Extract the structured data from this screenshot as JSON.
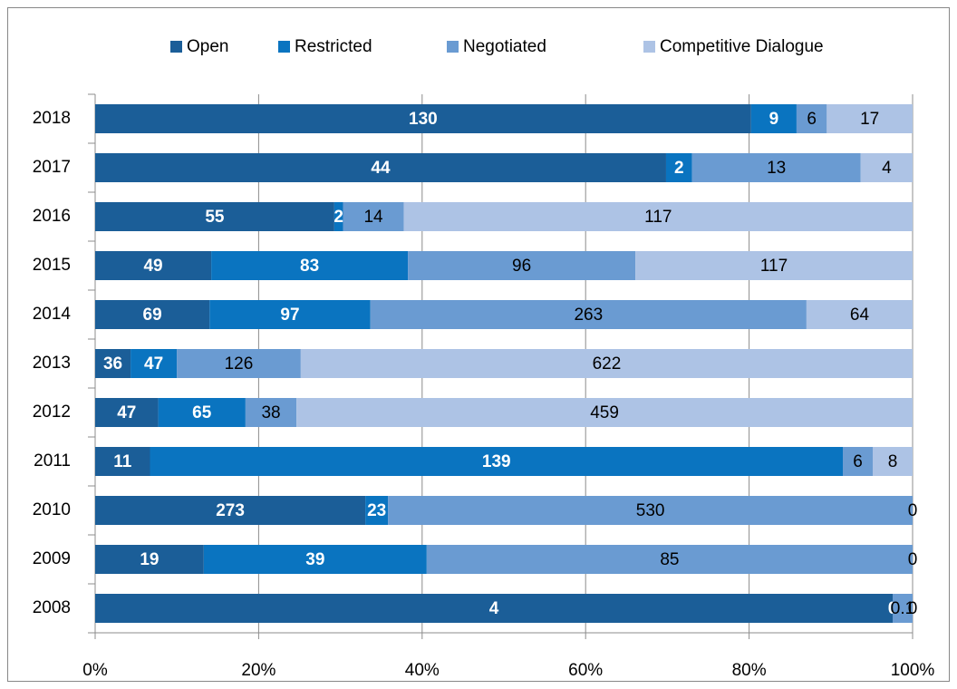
{
  "chart_data": {
    "type": "stacked_percent_barh",
    "categories": [
      "2018",
      "2017",
      "2016",
      "2015",
      "2014",
      "2013",
      "2012",
      "2011",
      "2010",
      "2009",
      "2008"
    ],
    "series": [
      {
        "name": "Open",
        "color": "#1b5e98",
        "values": [
          130,
          44,
          55,
          49,
          69,
          36,
          47,
          11,
          273,
          19,
          4
        ]
      },
      {
        "name": "Restricted",
        "color": "#0a74c0",
        "values": [
          9,
          2,
          2,
          83,
          97,
          47,
          65,
          139,
          23,
          39,
          0
        ]
      },
      {
        "name": "Negotiated",
        "color": "#6a9bd2",
        "values": [
          6,
          13,
          14,
          96,
          263,
          126,
          38,
          6,
          530,
          85,
          0.1
        ]
      },
      {
        "name": "Competitive Dialogue",
        "color": "#adc3e5",
        "values": [
          17,
          4,
          117,
          117,
          64,
          622,
          459,
          8,
          0,
          0,
          0
        ]
      }
    ],
    "xlim": [
      0,
      100
    ],
    "xticks": [
      {
        "value": 0,
        "label": "0%"
      },
      {
        "value": 20,
        "label": "20%"
      },
      {
        "value": 40,
        "label": "40%"
      },
      {
        "value": 60,
        "label": "60%"
      },
      {
        "value": 80,
        "label": "80%"
      },
      {
        "value": 100,
        "label": "100%"
      }
    ],
    "grid": true,
    "legend": "top"
  }
}
